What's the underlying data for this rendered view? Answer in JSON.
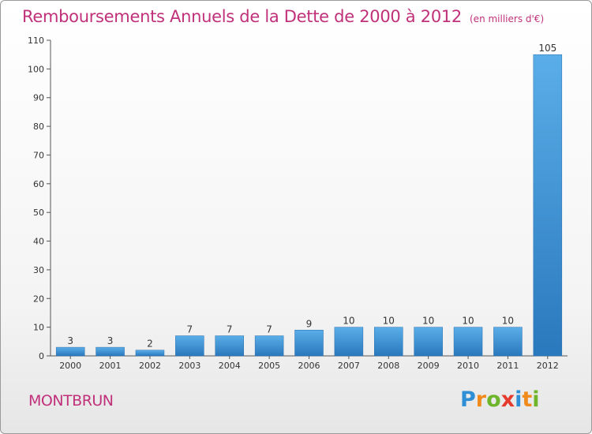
{
  "title": "Remboursements Annuels de la Dette de 2000 à 2012",
  "subtitle": "(en milliers d'€)",
  "commune": "MONTBRUN",
  "logo": {
    "text": "Proxiti",
    "letters": [
      {
        "ch": "P",
        "color": "#2f8fd6"
      },
      {
        "ch": "r",
        "color": "#f08a1c"
      },
      {
        "ch": "o",
        "color": "#6fb52c"
      },
      {
        "ch": "x",
        "color": "#e53b2f"
      },
      {
        "ch": "i",
        "color": "#2f8fd6"
      },
      {
        "ch": "t",
        "color": "#f08a1c"
      },
      {
        "ch": "i",
        "color": "#6fb52c"
      }
    ]
  },
  "colors": {
    "title": "#c0317a",
    "bar_light": "#5aaee8",
    "bar_dark": "#2a78bd"
  },
  "chart_data": {
    "type": "bar",
    "title": "Remboursements Annuels de la Dette de 2000 à 2012",
    "ylabel": "(en milliers d'€)",
    "xlabel": "",
    "categories": [
      "2000",
      "2001",
      "2002",
      "2003",
      "2004",
      "2005",
      "2006",
      "2007",
      "2008",
      "2009",
      "2010",
      "2011",
      "2012"
    ],
    "values": [
      3,
      3,
      2,
      7,
      7,
      7,
      9,
      10,
      10,
      10,
      10,
      10,
      105
    ],
    "ylim": [
      0,
      110
    ],
    "yticks": [
      0,
      10,
      20,
      30,
      40,
      50,
      60,
      70,
      80,
      90,
      100,
      110
    ],
    "grid": false,
    "legend": "none"
  }
}
